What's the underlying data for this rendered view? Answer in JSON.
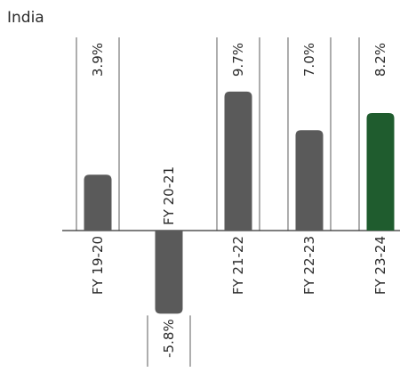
{
  "chart_data": {
    "type": "bar",
    "title": "India",
    "categories": [
      "FY 19-20",
      "FY 20-21",
      "FY 21-22",
      "FY 22-23",
      "FY 23-24"
    ],
    "values": [
      3.9,
      -5.8,
      9.7,
      7.0,
      8.2
    ],
    "value_labels": [
      "3.9%",
      "-5.8%",
      "9.7%",
      "7.0%",
      "8.2%"
    ],
    "unit": "%",
    "ylim": [
      -5.8,
      9.7
    ],
    "grid": false,
    "colors": {
      "default_bar": "#5a5a5a",
      "highlight_bar": "#1f5c2e",
      "guide_line": "#333333",
      "axis_line": "#333333",
      "text": "#2b2b2b"
    },
    "highlight_index": 4
  }
}
